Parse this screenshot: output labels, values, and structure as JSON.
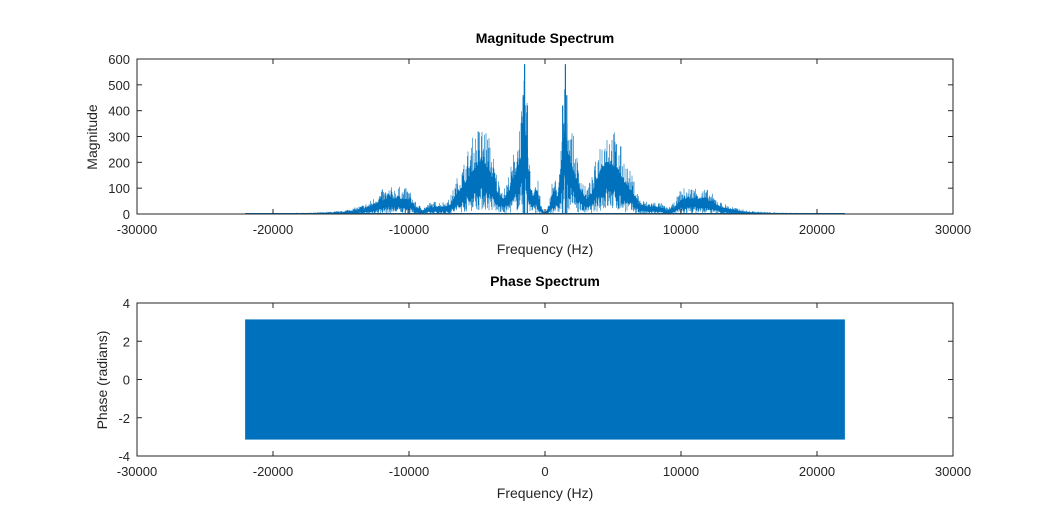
{
  "chart_data": [
    {
      "type": "area",
      "title": "Magnitude Spectrum",
      "xlabel": "Frequency (Hz)",
      "ylabel": "Magnitude",
      "xlim": [
        -30000,
        30000
      ],
      "ylim": [
        0,
        600
      ],
      "xticks": [
        -30000,
        -20000,
        -10000,
        0,
        10000,
        20000,
        30000
      ],
      "xtick_labels": [
        "-30000",
        "-20000",
        "-10000",
        "0",
        "10000",
        "20000",
        "30000"
      ],
      "yticks": [
        0,
        100,
        200,
        300,
        400,
        500,
        600
      ],
      "ytick_labels": [
        "0",
        "100",
        "200",
        "300",
        "400",
        "500",
        "600"
      ],
      "grid": false,
      "color": "#0072bd",
      "series": [
        {
          "x": [
            -22050,
            -20000,
            -17000,
            -15000,
            -14000,
            -13000,
            -12000,
            -11000,
            -10000,
            -9500,
            -9000,
            -8500,
            -8000,
            -7500,
            -7000,
            -6500,
            -6000,
            -5500,
            -5000,
            -4500,
            -4000,
            -3500,
            -3000,
            -2500,
            -2000,
            -1600,
            -1500,
            -1300,
            -1100,
            -900,
            -700,
            -500,
            -300,
            0,
            300,
            500,
            700,
            900,
            1100,
            1300,
            1500,
            1600,
            2000,
            2500,
            3000,
            3500,
            4000,
            4500,
            5000,
            5500,
            6000,
            6500,
            7000,
            7500,
            8000,
            8500,
            9000,
            9500,
            10000,
            11000,
            12000,
            13000,
            14000,
            15000,
            17000,
            20000,
            22050
          ],
          "y": [
            0,
            3,
            6,
            12,
            25,
            45,
            95,
            110,
            100,
            45,
            25,
            45,
            50,
            50,
            60,
            140,
            200,
            280,
            340,
            360,
            290,
            150,
            100,
            190,
            330,
            460,
            580,
            420,
            180,
            120,
            150,
            130,
            40,
            5,
            40,
            130,
            150,
            120,
            180,
            420,
            580,
            460,
            330,
            190,
            100,
            150,
            290,
            360,
            340,
            280,
            200,
            140,
            60,
            50,
            50,
            45,
            25,
            45,
            100,
            110,
            95,
            45,
            25,
            12,
            6,
            3,
            0
          ]
        }
      ]
    },
    {
      "type": "area",
      "title": "Phase Spectrum",
      "xlabel": "Frequency (Hz)",
      "ylabel": "Phase (radians)",
      "xlim": [
        -30000,
        30000
      ],
      "ylim": [
        -4,
        4
      ],
      "xticks": [
        -30000,
        -20000,
        -10000,
        0,
        10000,
        20000,
        30000
      ],
      "xtick_labels": [
        "-30000",
        "-20000",
        "-10000",
        "0",
        "10000",
        "20000",
        "30000"
      ],
      "yticks": [
        -4,
        -2,
        0,
        2,
        4
      ],
      "ytick_labels": [
        "-4",
        "-2",
        "0",
        "2",
        "4"
      ],
      "grid": false,
      "color": "#0072bd",
      "series": [
        {
          "x": [
            -22050,
            22050
          ],
          "y_min": [
            -3.1416,
            -3.1416
          ],
          "y_max": [
            3.1416,
            3.1416
          ]
        }
      ]
    }
  ]
}
